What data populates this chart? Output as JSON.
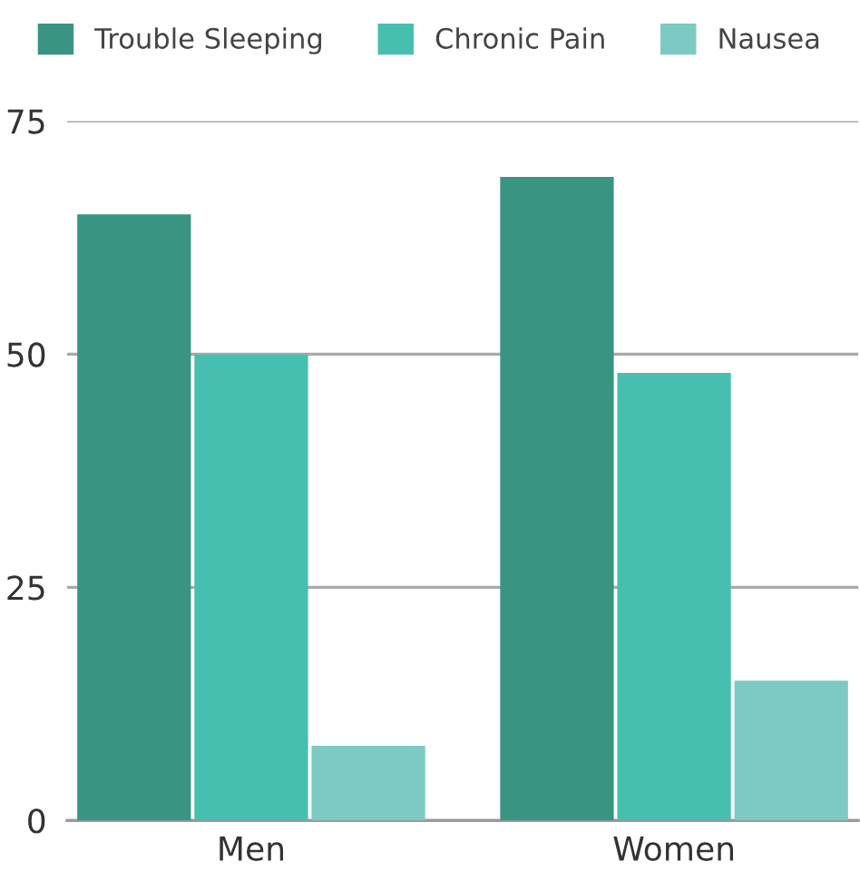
{
  "chart_data": {
    "type": "bar",
    "categories": [
      "Men",
      "Women"
    ],
    "series": [
      {
        "name": "Trouble Sleeping",
        "color": "#3a9482",
        "values": [
          65,
          69
        ]
      },
      {
        "name": "Chronic Pain",
        "color": "#46bfb0",
        "values": [
          50,
          48
        ]
      },
      {
        "name": "Nausea",
        "color": "#7ccac2",
        "values": [
          8,
          15
        ]
      }
    ],
    "ylim": [
      0,
      75
    ],
    "yticks": [
      0,
      25,
      50,
      75
    ],
    "grid": "y",
    "legend": "top"
  }
}
